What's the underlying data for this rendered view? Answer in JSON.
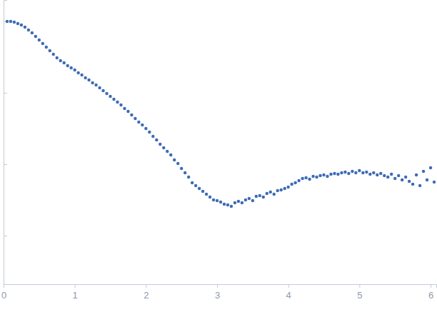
{
  "chart_data": {
    "type": "scatter",
    "x": [
      0.05,
      0.1,
      0.15,
      0.2,
      0.25,
      0.3,
      0.35,
      0.4,
      0.45,
      0.5,
      0.55,
      0.6,
      0.65,
      0.7,
      0.75,
      0.8,
      0.85,
      0.9,
      0.95,
      1.0,
      1.05,
      1.1,
      1.15,
      1.2,
      1.25,
      1.3,
      1.35,
      1.4,
      1.45,
      1.5,
      1.55,
      1.6,
      1.65,
      1.7,
      1.75,
      1.8,
      1.85,
      1.9,
      1.95,
      2.0,
      2.05,
      2.1,
      2.15,
      2.2,
      2.25,
      2.3,
      2.35,
      2.4,
      2.45,
      2.5,
      2.55,
      2.6,
      2.65,
      2.7,
      2.75,
      2.8,
      2.85,
      2.9,
      2.95,
      3.0,
      3.05,
      3.1,
      3.15,
      3.2,
      3.25,
      3.3,
      3.35,
      3.4,
      3.45,
      3.5,
      3.55,
      3.6,
      3.65,
      3.7,
      3.75,
      3.8,
      3.85,
      3.9,
      3.95,
      4.0,
      4.05,
      4.1,
      4.15,
      4.2,
      4.25,
      4.3,
      4.35,
      4.4,
      4.45,
      4.5,
      4.55,
      4.6,
      4.65,
      4.7,
      4.75,
      4.8,
      4.85,
      4.9,
      4.95,
      5.0,
      5.05,
      5.1,
      5.15,
      5.2,
      5.25,
      5.3,
      5.35,
      5.4,
      5.45,
      5.5,
      5.55,
      5.6,
      5.65,
      5.7,
      5.75,
      5.8,
      5.85,
      5.9,
      5.95,
      6.0,
      6.05
    ],
    "values": [
      3.0,
      3.0,
      2.99,
      2.97,
      2.95,
      2.92,
      2.88,
      2.84,
      2.79,
      2.74,
      2.69,
      2.64,
      2.59,
      2.54,
      2.49,
      2.45,
      2.42,
      2.38,
      2.35,
      2.32,
      2.28,
      2.25,
      2.21,
      2.18,
      2.14,
      2.11,
      2.07,
      2.03,
      1.99,
      1.95,
      1.91,
      1.87,
      1.83,
      1.78,
      1.74,
      1.69,
      1.64,
      1.59,
      1.55,
      1.5,
      1.45,
      1.39,
      1.34,
      1.28,
      1.23,
      1.18,
      1.13,
      1.06,
      1.01,
      0.94,
      0.88,
      0.82,
      0.74,
      0.7,
      0.66,
      0.62,
      0.58,
      0.54,
      0.5,
      0.49,
      0.47,
      0.44,
      0.43,
      0.41,
      0.46,
      0.48,
      0.46,
      0.5,
      0.52,
      0.49,
      0.55,
      0.56,
      0.54,
      0.59,
      0.61,
      0.58,
      0.63,
      0.64,
      0.66,
      0.68,
      0.72,
      0.74,
      0.77,
      0.8,
      0.81,
      0.79,
      0.83,
      0.82,
      0.84,
      0.85,
      0.83,
      0.86,
      0.87,
      0.86,
      0.88,
      0.89,
      0.87,
      0.9,
      0.88,
      0.91,
      0.88,
      0.89,
      0.86,
      0.88,
      0.85,
      0.87,
      0.84,
      0.82,
      0.86,
      0.8,
      0.84,
      0.78,
      0.82,
      0.76,
      0.72,
      0.85,
      0.7,
      0.9,
      0.78,
      0.95,
      0.75
    ],
    "color": "#3a6bc0",
    "marker": "circle",
    "xlim": [
      0,
      6.08
    ],
    "xticks": [
      0,
      1,
      2,
      3,
      4,
      5,
      6
    ],
    "ylim": [
      -0.68,
      3.3
    ],
    "yticks": [
      0,
      1,
      2,
      3
    ],
    "tick_labels": "x",
    "grid": false
  }
}
